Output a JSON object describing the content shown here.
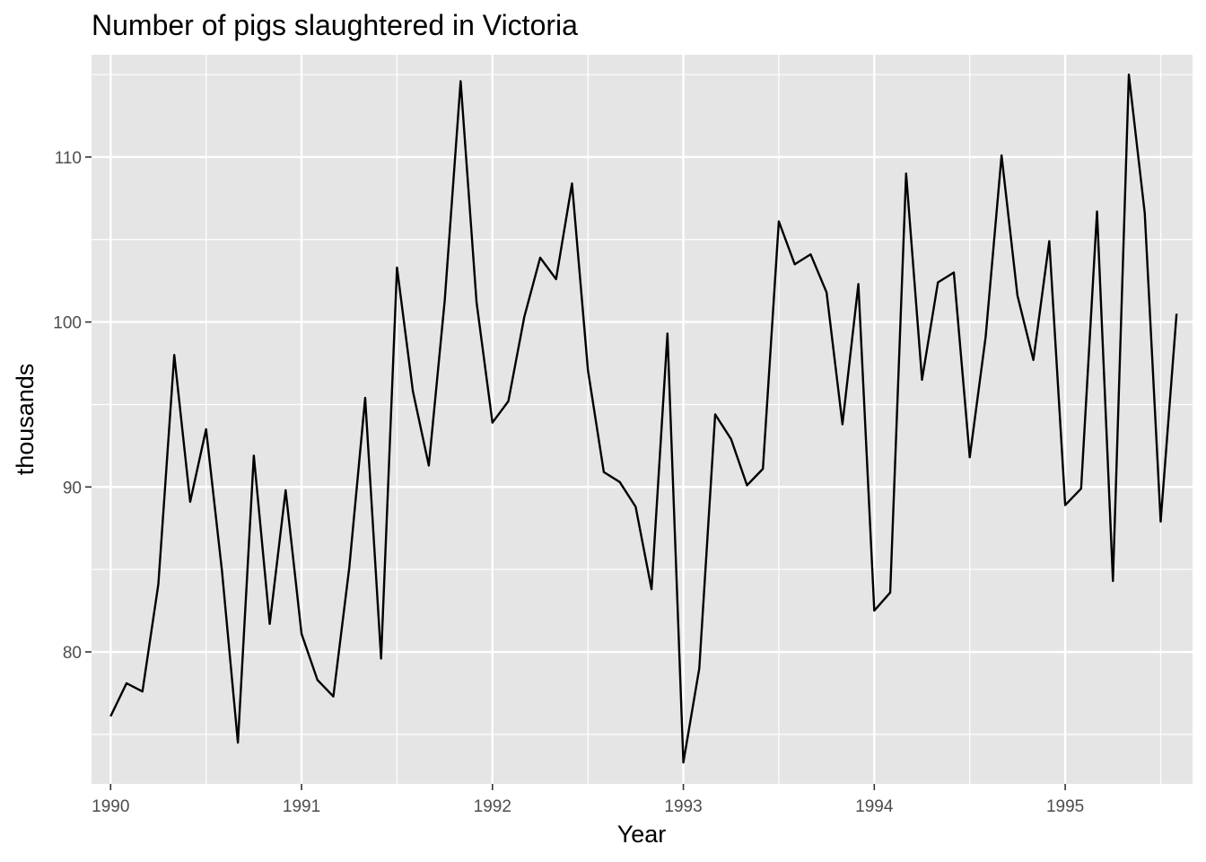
{
  "chart_data": {
    "type": "line",
    "title": "Number of pigs slaughtered in Victoria",
    "xlabel": "Year",
    "ylabel": "thousands",
    "xlim": [
      1989.9,
      1995.667
    ],
    "ylim": [
      72.0,
      116.2
    ],
    "x_ticks": [
      1990,
      1991,
      1992,
      1993,
      1994,
      1995
    ],
    "x_tick_labels": [
      "1990",
      "1991",
      "1992",
      "1993",
      "1994",
      "1995"
    ],
    "y_ticks": [
      80,
      90,
      100,
      110
    ],
    "y_tick_labels": [
      "80",
      "90",
      "100",
      "110"
    ],
    "grid": true,
    "legend": "none",
    "background": "#e5e5e5",
    "line_color": "#000000",
    "x_start": 1990,
    "x_step_months": 1,
    "series": [
      {
        "values": [
          76.1,
          78.1,
          77.6,
          84.1,
          98.0,
          89.1,
          93.5,
          84.9,
          74.5,
          91.9,
          81.7,
          89.8,
          81.1,
          78.3,
          77.3,
          85.1,
          95.4,
          79.6,
          103.3,
          95.8,
          91.3,
          101.3,
          114.6,
          101.2,
          93.9,
          95.2,
          100.3,
          103.9,
          102.6,
          108.4,
          97.1,
          90.9,
          90.3,
          88.8,
          83.8,
          99.3,
          73.3,
          79.0,
          94.4,
          92.9,
          90.1,
          91.1,
          106.1,
          103.5,
          104.1,
          101.8,
          93.8,
          102.3,
          82.5,
          83.6,
          109.0,
          96.5,
          102.4,
          103.0,
          91.8,
          99.1,
          110.1,
          101.6,
          97.7,
          104.9,
          88.9,
          89.9,
          106.7,
          84.3,
          115.0,
          106.6,
          87.9,
          100.5
        ]
      }
    ]
  }
}
